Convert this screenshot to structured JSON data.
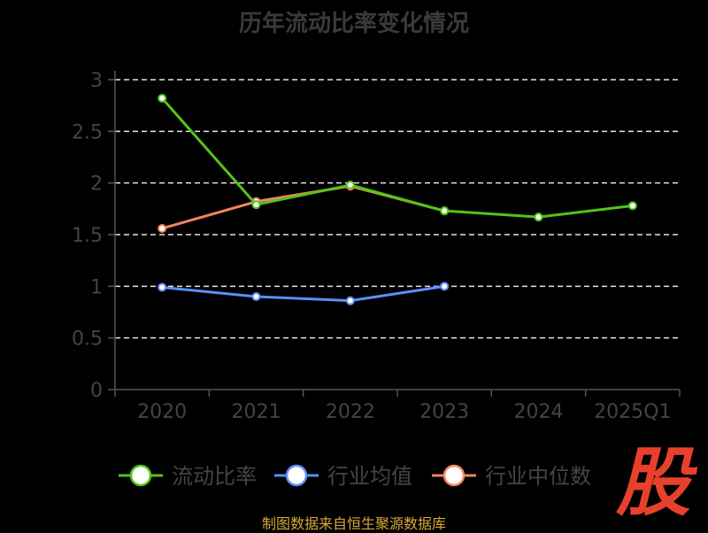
{
  "title": "历年流动比率变化情况",
  "source": "制图数据来自恒生聚源数据库",
  "watermark": "股",
  "chart_data": {
    "type": "line",
    "categories": [
      "2020",
      "2021",
      "2022",
      "2023",
      "2024",
      "2025Q1"
    ],
    "ylim": [
      0,
      3
    ],
    "yticks": [
      "0",
      "0.5",
      "1",
      "1.5",
      "2",
      "2.5",
      "3"
    ],
    "grid": true,
    "legend": "bottom",
    "series": [
      {
        "name": "流动比率",
        "color": "#52c41a",
        "values": [
          2.82,
          1.79,
          1.98,
          1.73,
          1.67,
          1.78
        ]
      },
      {
        "name": "行业均值",
        "color": "#5b8ff9",
        "values": [
          0.99,
          0.9,
          0.86,
          1.0,
          null,
          null
        ]
      },
      {
        "name": "行业中位数",
        "color": "#f4845f",
        "values": [
          1.56,
          1.82,
          1.97,
          1.73,
          null,
          null
        ]
      }
    ]
  }
}
